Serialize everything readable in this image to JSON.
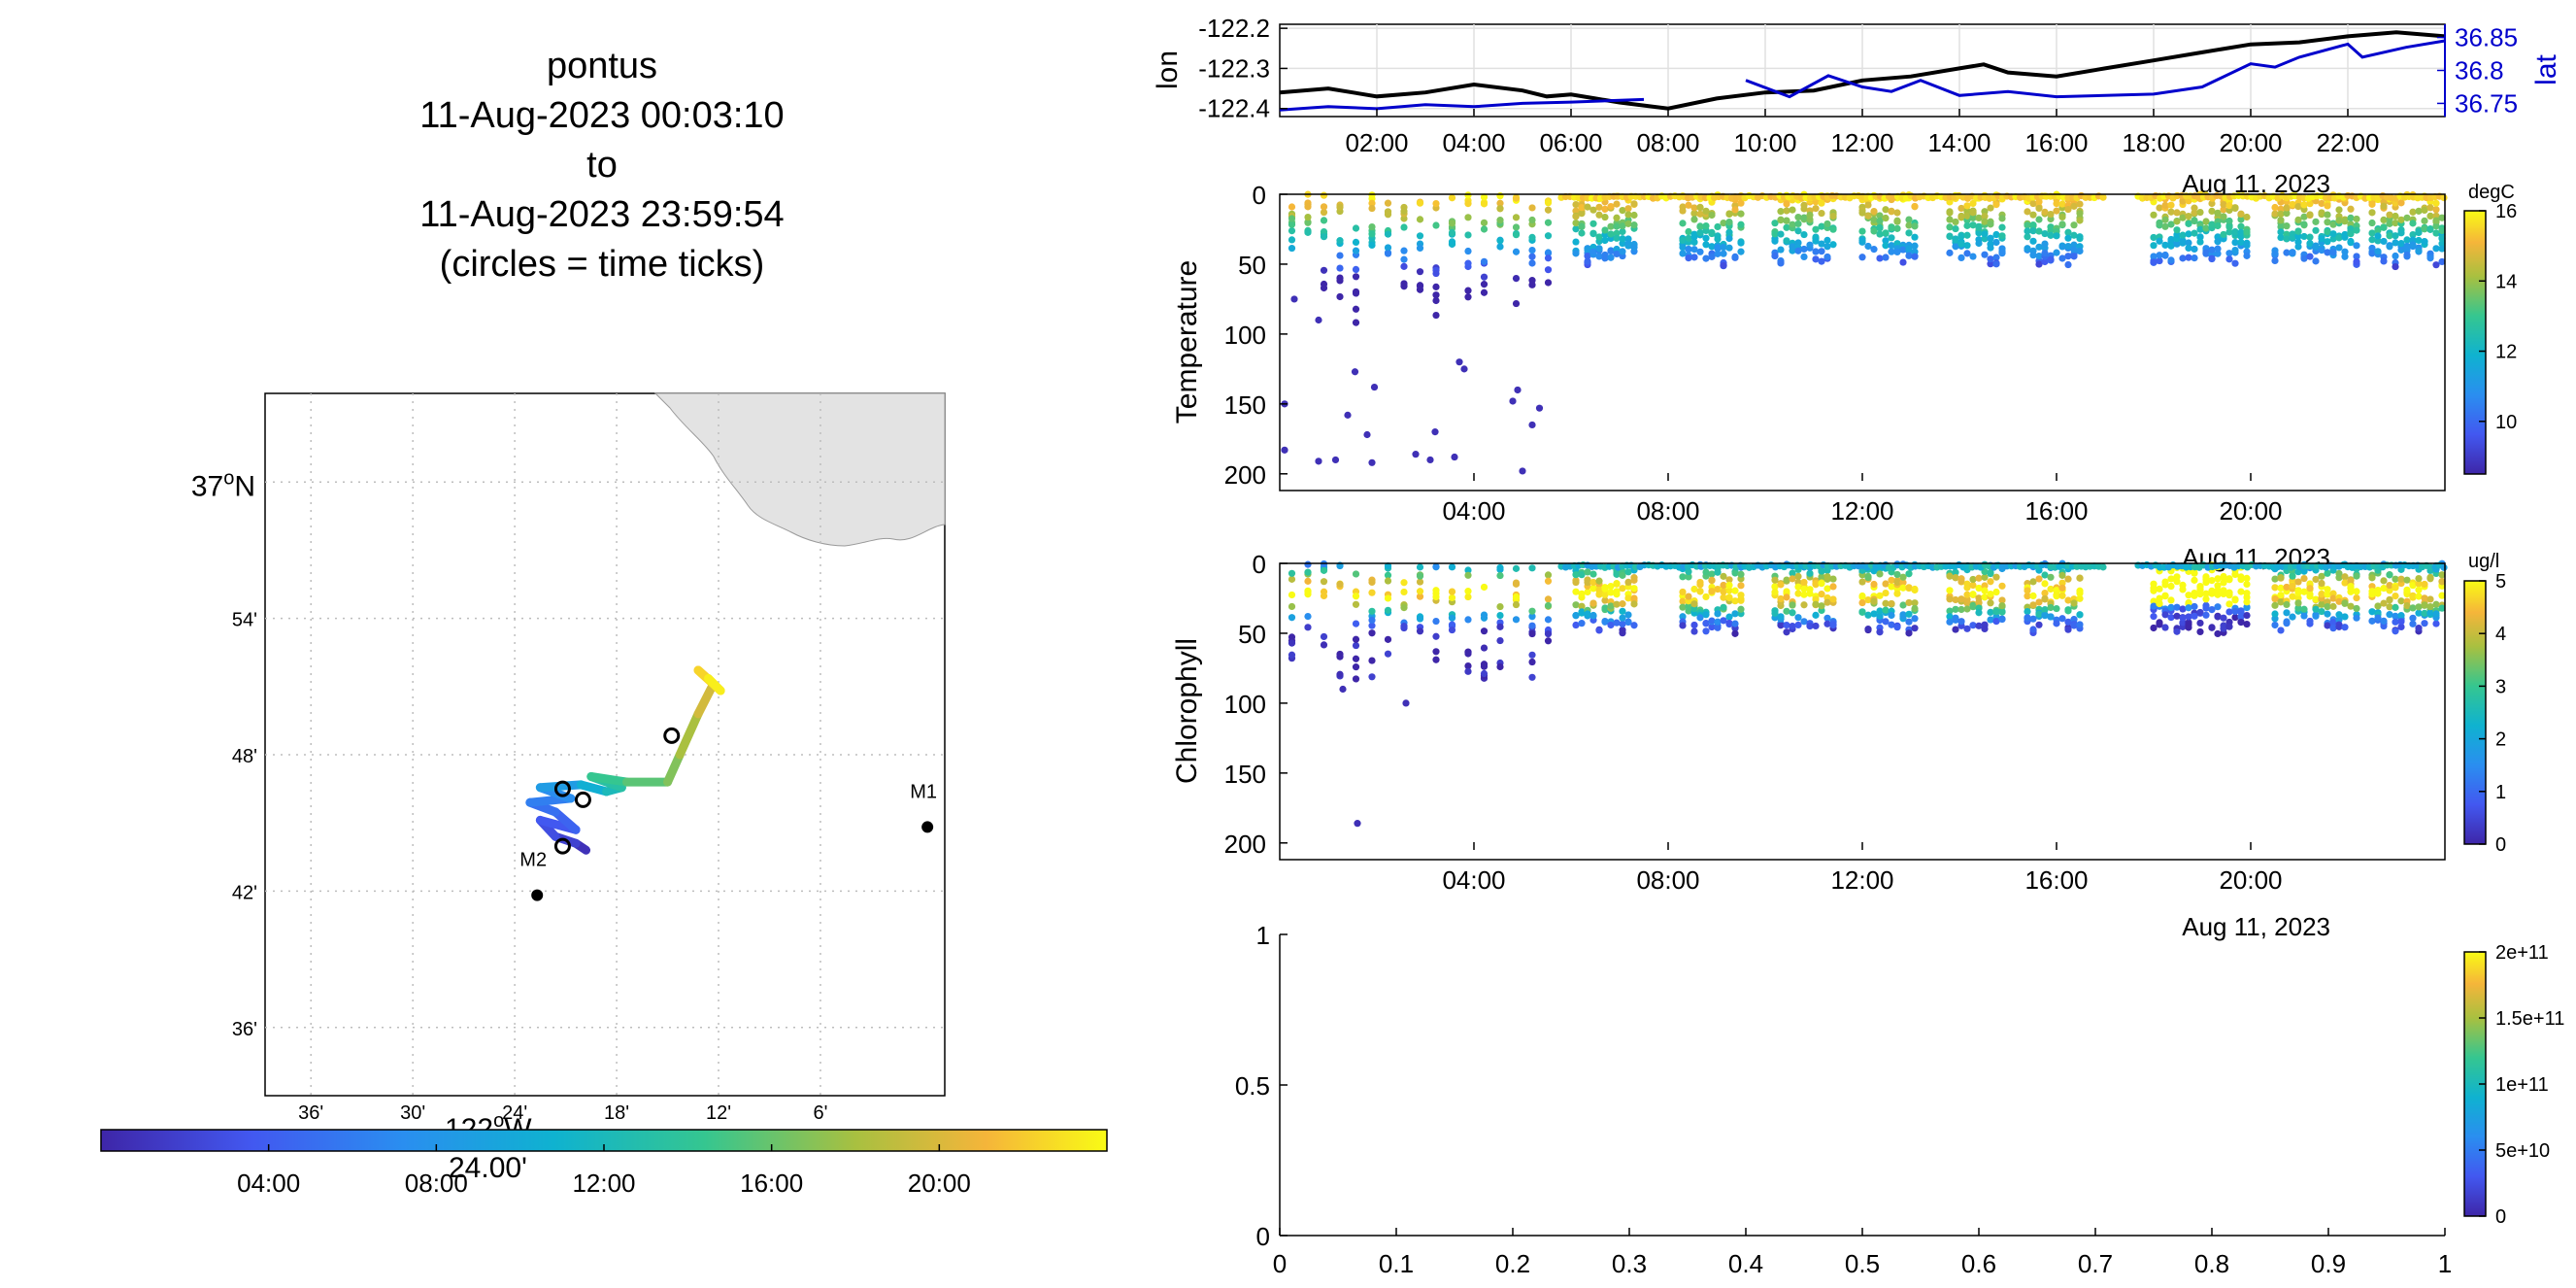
{
  "header": {
    "title_lines": [
      "pontus",
      "11-Aug-2023 00:03:10",
      "to",
      "11-Aug-2023 23:59:54",
      "(circles = time ticks)"
    ]
  },
  "map": {
    "lat_labels": [
      {
        "text": "37",
        "deg": "o",
        "hem": "N",
        "lat": 37.0
      },
      {
        "text": "54'",
        "lat": 36.9
      },
      {
        "text": "48'",
        "lat": 36.8
      },
      {
        "text": "42'",
        "lat": 36.7
      },
      {
        "text": "36'",
        "lat": 36.6
      }
    ],
    "lon_labels": [
      {
        "text": "36'",
        "lon": -122.6
      },
      {
        "text": "30'",
        "lon": -122.5
      },
      {
        "text": "24'",
        "lon": -122.4
      },
      {
        "text": "18'",
        "lon": -122.3
      },
      {
        "text": "12'",
        "lon": -122.2
      },
      {
        "text": "6'",
        "lon": -122.1
      }
    ],
    "lon_main_label": {
      "text": "122",
      "deg": "o",
      "hem": "W"
    },
    "stations": [
      {
        "name": "M1",
        "lon": -121.995,
        "lat": 36.747
      },
      {
        "name": "M2",
        "lon": -122.378,
        "lat": 36.697
      }
    ],
    "track_points": [
      {
        "lon": -122.33,
        "lat": 36.73,
        "t": 0.1
      },
      {
        "lon": -122.34,
        "lat": 36.735,
        "t": 1.5
      },
      {
        "lon": -122.36,
        "lat": 36.74,
        "t": 2.5
      },
      {
        "lon": -122.375,
        "lat": 36.752,
        "t": 3.2
      },
      {
        "lon": -122.34,
        "lat": 36.745,
        "t": 4.0
      },
      {
        "lon": -122.36,
        "lat": 36.758,
        "t": 4.8
      },
      {
        "lon": -122.385,
        "lat": 36.765,
        "t": 5.6
      },
      {
        "lon": -122.345,
        "lat": 36.768,
        "t": 6.8
      },
      {
        "lon": -122.375,
        "lat": 36.776,
        "t": 7.6
      },
      {
        "lon": -122.335,
        "lat": 36.778,
        "t": 9.5
      },
      {
        "lon": -122.31,
        "lat": 36.773,
        "t": 11.5
      },
      {
        "lon": -122.295,
        "lat": 36.776,
        "t": 12.7
      },
      {
        "lon": -122.325,
        "lat": 36.784,
        "t": 13.8
      },
      {
        "lon": -122.29,
        "lat": 36.78,
        "t": 15.0
      },
      {
        "lon": -122.25,
        "lat": 36.78,
        "t": 16.2
      },
      {
        "lon": -122.238,
        "lat": 36.8,
        "t": 17.4
      },
      {
        "lon": -122.22,
        "lat": 36.83,
        "t": 18.8
      },
      {
        "lon": -122.205,
        "lat": 36.852,
        "t": 20.6
      },
      {
        "lon": -122.22,
        "lat": 36.862,
        "t": 21.8
      },
      {
        "lon": -122.198,
        "lat": 36.847,
        "t": 23.0
      },
      {
        "lon": -122.21,
        "lat": 36.856,
        "t": 23.9
      }
    ],
    "time_tick_circles": [
      {
        "lon": -122.353,
        "lat": 36.733,
        "t": 4
      },
      {
        "lon": -122.353,
        "lat": 36.775,
        "t": 8
      },
      {
        "lon": -122.333,
        "lat": 36.767,
        "t": 12
      },
      {
        "lon": -122.246,
        "lat": 36.814,
        "t": 20
      }
    ],
    "colorbar_ticks": [
      "04:00",
      "08:00",
      "12:00",
      "16:00",
      "20:00"
    ],
    "colorbar_bottom_label": "24.00'"
  },
  "chart_data": [
    {
      "type": "line",
      "ylabel_left": "lon",
      "ylabel_right": "lat",
      "x_ticks": [
        "02:00",
        "04:00",
        "06:00",
        "08:00",
        "10:00",
        "12:00",
        "14:00",
        "16:00",
        "18:00",
        "20:00",
        "22:00"
      ],
      "date_label": "Aug 11, 2023",
      "ylim_left": [
        -122.42,
        -122.19
      ],
      "ylim_right": [
        36.73,
        36.87
      ],
      "y_ticks_left": [
        "-122.2",
        "-122.3",
        "-122.4"
      ],
      "y_ticks_right": [
        "36.85",
        "36.8",
        "36.75"
      ],
      "series": [
        {
          "name": "lon",
          "color": "#000000",
          "x": [
            0,
            1,
            2,
            3,
            4,
            5,
            5.5,
            6,
            6.5,
            7,
            8,
            9,
            10,
            11,
            12,
            13,
            14,
            14.5,
            15,
            16,
            17,
            18,
            19,
            20,
            21,
            22,
            23,
            24
          ],
          "y": [
            -122.36,
            -122.35,
            -122.37,
            -122.36,
            -122.34,
            -122.355,
            -122.37,
            -122.365,
            -122.375,
            -122.385,
            -122.4,
            -122.375,
            -122.36,
            -122.355,
            -122.33,
            -122.32,
            -122.3,
            -122.29,
            -122.31,
            -122.32,
            -122.3,
            -122.28,
            -122.26,
            -122.24,
            -122.235,
            -122.22,
            -122.21,
            -122.22
          ]
        },
        {
          "name": "lat",
          "color": "#0000cc",
          "x": [
            0,
            1,
            2,
            3,
            4,
            5,
            6,
            7.5
          ],
          "y": [
            36.74,
            36.745,
            36.742,
            36.748,
            36.745,
            36.75,
            36.752,
            36.756
          ]
        },
        {
          "name": "lat",
          "color": "#0000cc",
          "x": [
            9.6,
            10.5,
            11.3,
            12.0,
            12.6,
            13.2,
            14.0,
            15.0,
            16.0,
            17.0,
            18.0,
            19.0,
            20.0,
            20.5,
            21.0,
            22.0,
            22.3,
            23.2,
            24.0
          ],
          "y": [
            36.785,
            36.76,
            36.792,
            36.775,
            36.768,
            36.785,
            36.762,
            36.768,
            36.76,
            36.762,
            36.764,
            36.775,
            36.81,
            36.805,
            36.82,
            36.84,
            36.82,
            36.835,
            36.845
          ]
        }
      ]
    },
    {
      "type": "scatter",
      "ylabel": "Temperature",
      "x_ticks": [
        "04:00",
        "08:00",
        "12:00",
        "16:00",
        "20:00"
      ],
      "date_label": "Aug 11, 2023",
      "y_ticks": [
        "0",
        "50",
        "100",
        "150",
        "200"
      ],
      "ylim": [
        0,
        205
      ],
      "colorbar_label": "degC",
      "colorbar_ticks": [
        "10",
        "12",
        "14",
        "16"
      ],
      "clim": [
        8.5,
        16
      ]
    },
    {
      "type": "scatter",
      "ylabel": "Chlorophyll",
      "x_ticks": [
        "04:00",
        "08:00",
        "12:00",
        "16:00",
        "20:00"
      ],
      "date_label": "Aug 11, 2023",
      "y_ticks": [
        "0",
        "50",
        "100",
        "150",
        "200"
      ],
      "ylim": [
        0,
        205
      ],
      "colorbar_label": "ug/l",
      "colorbar_ticks": [
        "0",
        "1",
        "2",
        "3",
        "4",
        "5"
      ],
      "clim": [
        0,
        5
      ]
    },
    {
      "type": "scatter",
      "x_ticks": [
        "0",
        "0.1",
        "0.2",
        "0.3",
        "0.4",
        "0.5",
        "0.6",
        "0.7",
        "0.8",
        "0.9",
        "1"
      ],
      "y_ticks": [
        "0",
        "0.5",
        "1"
      ],
      "xlim": [
        0,
        1
      ],
      "ylim": [
        0,
        1
      ],
      "colorbar_ticks": [
        "0",
        "5e+10",
        "1e+11",
        "1.5e+11",
        "2e+11"
      ],
      "clim": [
        0,
        200000000000.0
      ]
    }
  ]
}
